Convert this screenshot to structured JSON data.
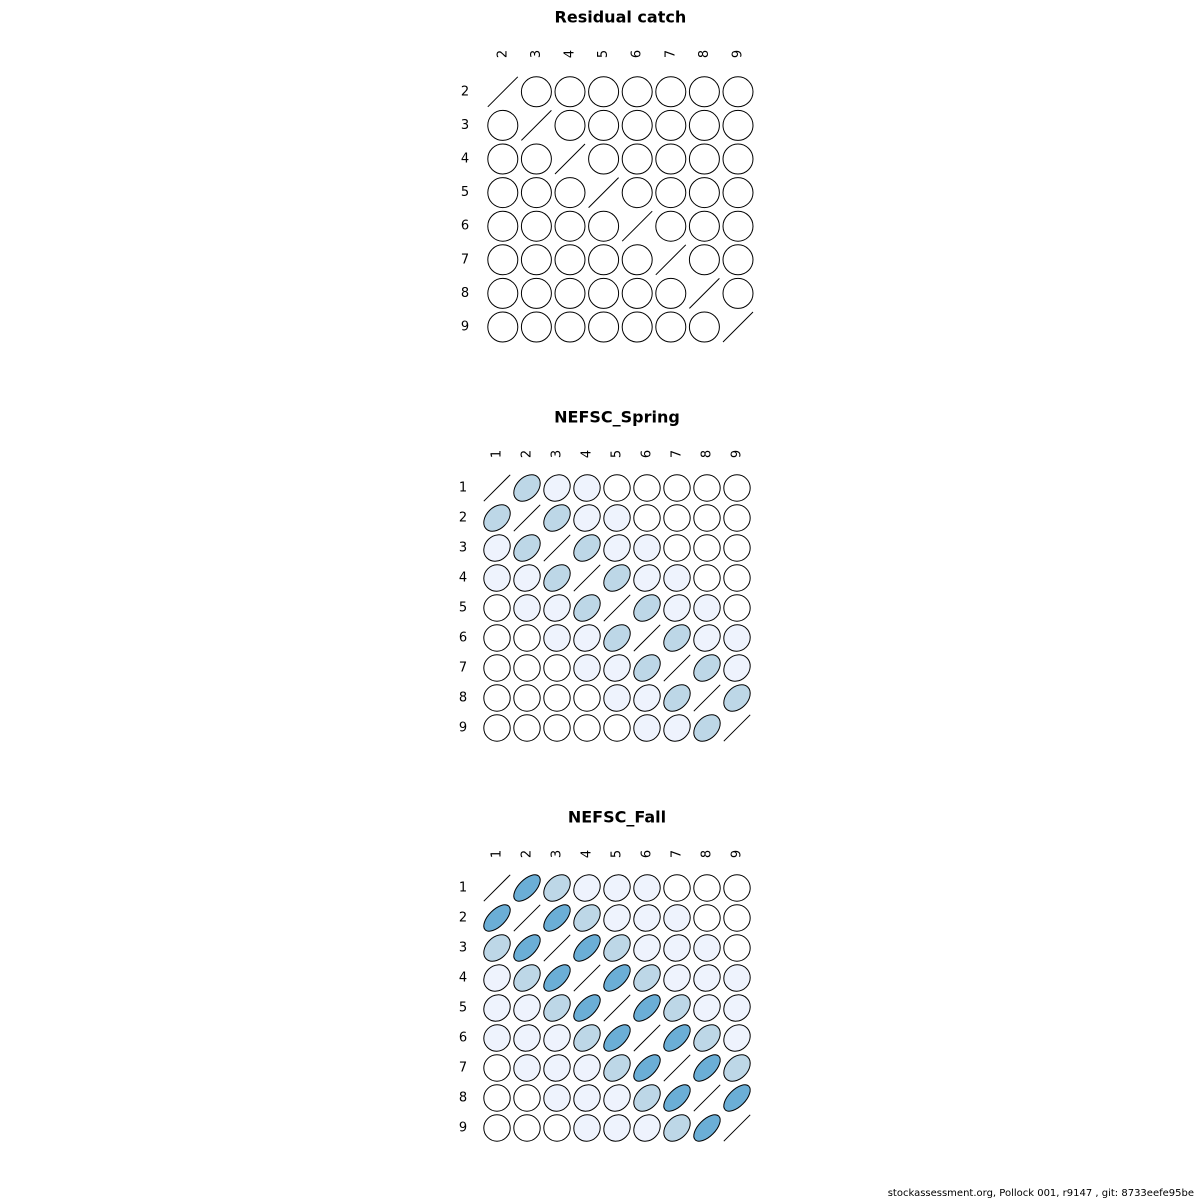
{
  "chart_data": [
    {
      "type": "heatmap",
      "title": "Residual catch",
      "labels": [
        "2",
        "3",
        "4",
        "5",
        "6",
        "7",
        "8",
        "9"
      ],
      "correlations": [
        [
          1.0,
          0.0,
          0.0,
          0.0,
          0.0,
          0.0,
          0.0,
          0.0
        ],
        [
          0.0,
          1.0,
          0.0,
          0.0,
          0.0,
          0.0,
          0.0,
          0.0
        ],
        [
          0.0,
          0.0,
          1.0,
          0.0,
          0.0,
          0.0,
          0.0,
          0.0
        ],
        [
          0.0,
          0.0,
          0.0,
          1.0,
          0.0,
          0.0,
          0.0,
          0.0
        ],
        [
          0.0,
          0.0,
          0.0,
          0.0,
          1.0,
          0.0,
          0.0,
          0.0
        ],
        [
          0.0,
          0.0,
          0.0,
          0.0,
          0.0,
          1.0,
          0.0,
          0.0
        ],
        [
          0.0,
          0.0,
          0.0,
          0.0,
          0.0,
          0.0,
          1.0,
          0.0
        ],
        [
          0.0,
          0.0,
          0.0,
          0.0,
          0.0,
          0.0,
          0.0,
          1.0
        ]
      ]
    },
    {
      "type": "heatmap",
      "title": "NEFSC_Spring",
      "labels": [
        "1",
        "2",
        "3",
        "4",
        "5",
        "6",
        "7",
        "8",
        "9"
      ],
      "correlations": [
        [
          1.0,
          0.35,
          0.15,
          0.03,
          0.0,
          0.0,
          0.0,
          0.0,
          0.0
        ],
        [
          0.35,
          1.0,
          0.35,
          0.15,
          0.03,
          0.0,
          0.0,
          0.0,
          0.0
        ],
        [
          0.15,
          0.35,
          1.0,
          0.35,
          0.15,
          0.03,
          0.0,
          0.0,
          0.0
        ],
        [
          0.03,
          0.15,
          0.35,
          1.0,
          0.35,
          0.15,
          0.03,
          0.0,
          0.0
        ],
        [
          0.0,
          0.03,
          0.15,
          0.35,
          1.0,
          0.35,
          0.15,
          0.03,
          0.0
        ],
        [
          0.0,
          0.0,
          0.03,
          0.15,
          0.35,
          1.0,
          0.35,
          0.15,
          0.03
        ],
        [
          0.0,
          0.0,
          0.0,
          0.03,
          0.15,
          0.35,
          1.0,
          0.35,
          0.15
        ],
        [
          0.0,
          0.0,
          0.0,
          0.0,
          0.03,
          0.15,
          0.35,
          1.0,
          0.35
        ],
        [
          0.0,
          0.0,
          0.0,
          0.0,
          0.0,
          0.03,
          0.15,
          0.35,
          1.0
        ]
      ]
    },
    {
      "type": "heatmap",
      "title": "NEFSC_Fall",
      "labels": [
        "1",
        "2",
        "3",
        "4",
        "5",
        "6",
        "7",
        "8",
        "9"
      ],
      "correlations": [
        [
          1.0,
          0.6,
          0.35,
          0.15,
          0.1,
          0.03,
          0.0,
          0.0,
          0.0
        ],
        [
          0.6,
          1.0,
          0.6,
          0.35,
          0.15,
          0.1,
          0.03,
          0.0,
          0.0
        ],
        [
          0.35,
          0.6,
          1.0,
          0.6,
          0.35,
          0.15,
          0.1,
          0.03,
          0.0
        ],
        [
          0.15,
          0.35,
          0.6,
          1.0,
          0.6,
          0.35,
          0.15,
          0.1,
          0.03
        ],
        [
          0.1,
          0.15,
          0.35,
          0.6,
          1.0,
          0.6,
          0.35,
          0.15,
          0.1
        ],
        [
          0.03,
          0.1,
          0.15,
          0.35,
          0.6,
          1.0,
          0.6,
          0.35,
          0.15
        ],
        [
          0.0,
          0.03,
          0.1,
          0.15,
          0.35,
          0.6,
          1.0,
          0.6,
          0.35
        ],
        [
          0.0,
          0.0,
          0.03,
          0.1,
          0.15,
          0.35,
          0.6,
          1.0,
          0.6
        ],
        [
          0.0,
          0.0,
          0.0,
          0.03,
          0.1,
          0.15,
          0.35,
          0.6,
          1.0
        ]
      ]
    }
  ],
  "colors": {
    "zero": "#ffffff",
    "low": "#eef3fd",
    "medium": "#bdd7e7",
    "high": "#6baed6",
    "outline": "#000000"
  },
  "footer": "stockassessment.org, Pollock  001, r9147 , git: 8733eefe95be"
}
